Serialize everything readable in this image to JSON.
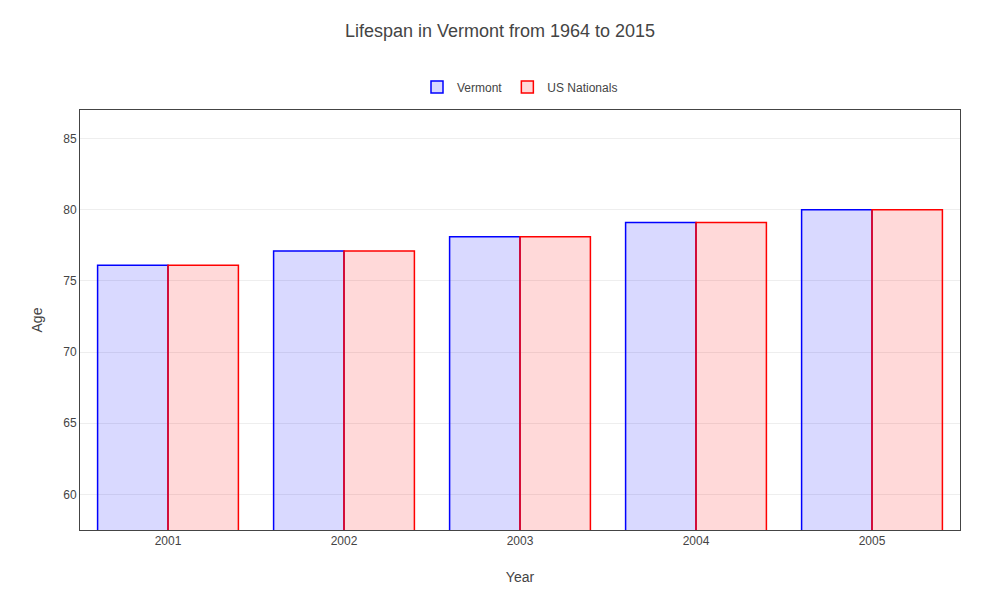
{
  "chart_data": {
    "type": "bar",
    "title": "Lifespan in Vermont from 1964 to 2015",
    "x_label": "Year",
    "y_label": "Age",
    "categories": [
      "2001",
      "2002",
      "2003",
      "2004",
      "2005"
    ],
    "series": [
      {
        "name": "Vermont",
        "color": "#0000ff",
        "values": [
          76.1,
          77.1,
          78.1,
          79.1,
          80.0
        ]
      },
      {
        "name": "US Nationals",
        "color": "#ff0000",
        "values": [
          76.1,
          77.1,
          78.1,
          79.1,
          80.0
        ]
      }
    ],
    "ylim": [
      57.5,
      87
    ],
    "yticks": [
      60,
      65,
      70,
      75,
      80,
      85
    ],
    "grid": true,
    "legend": "top"
  }
}
